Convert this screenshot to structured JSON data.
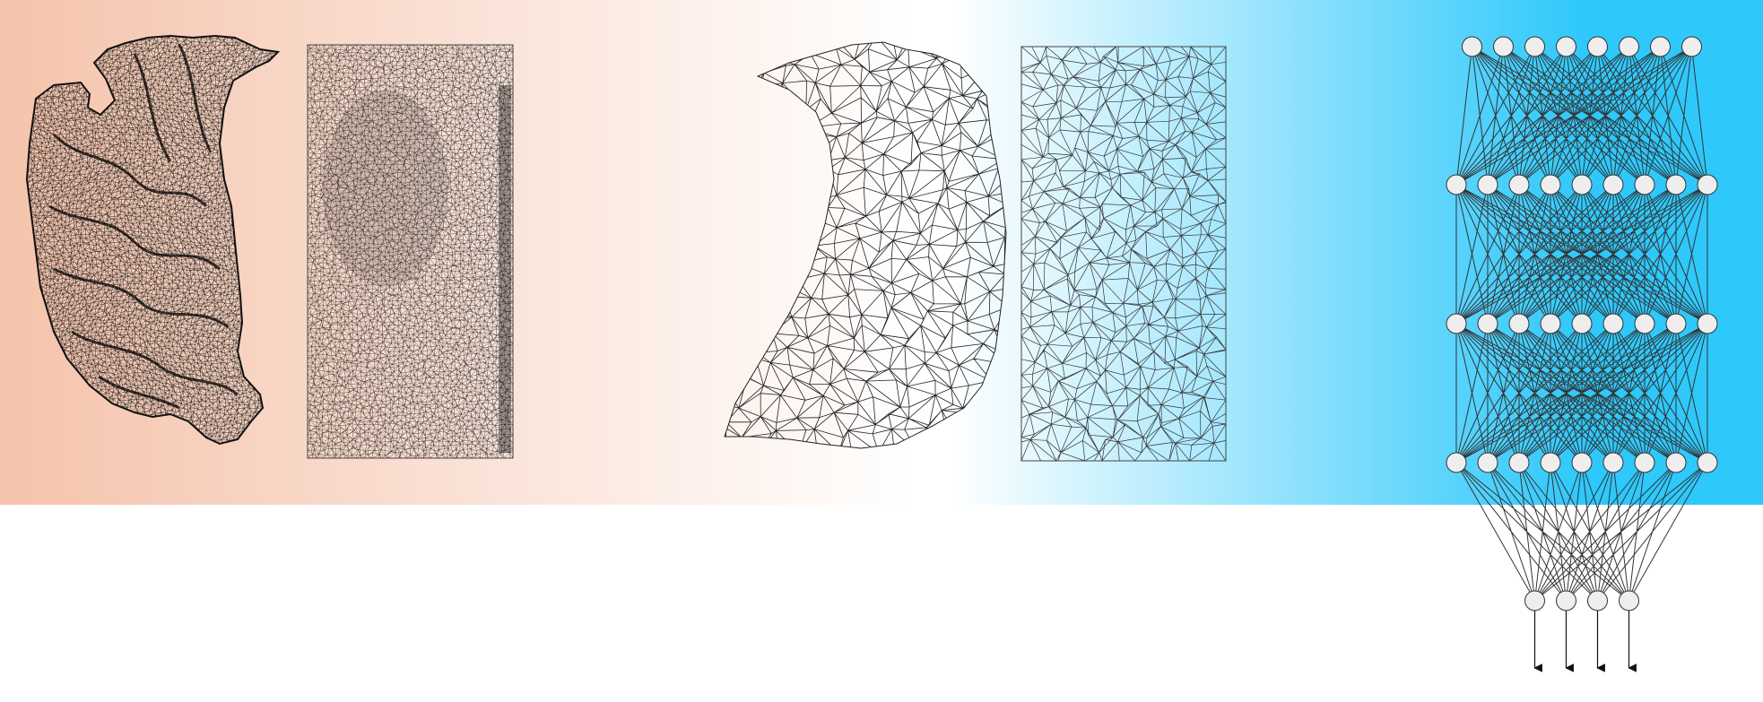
{
  "background": {
    "left_color": "#f5c3ab",
    "mid_color": "#ffffff",
    "right_color": "#2ec8fb"
  },
  "figure": {
    "panels": [
      {
        "name": "dense-3d-mesh",
        "kind": "surface-mesh",
        "density": "dense"
      },
      {
        "name": "dense-flattened-mesh",
        "kind": "planar-mesh",
        "density": "dense"
      },
      {
        "name": "coarse-3d-mesh",
        "kind": "surface-mesh",
        "density": "coarse"
      },
      {
        "name": "coarse-flattened-mesh",
        "kind": "planar-mesh",
        "density": "coarse"
      }
    ],
    "network": {
      "layers": [
        8,
        9,
        9,
        9,
        4
      ],
      "output_arrows": 4,
      "node_fill": "#eeeeee",
      "stroke": "#333333"
    }
  }
}
